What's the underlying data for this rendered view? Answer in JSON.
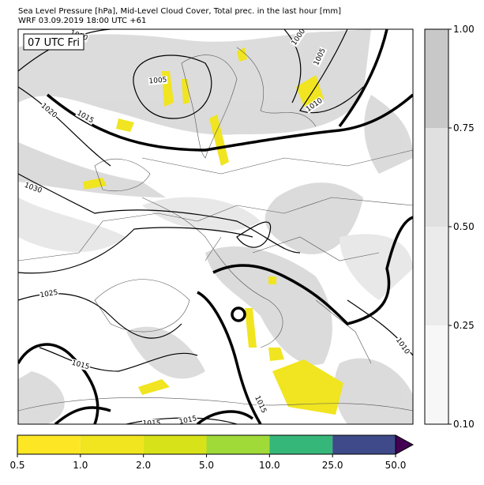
{
  "header": {
    "title": "Sea Level Pressure [hPa], Mid-Level Cloud Cover, Total prec. in the last hour [mm]",
    "subtitle": "WRF 03.09.2019 18:00 UTC +61"
  },
  "map": {
    "time_label": "07 UTC Fri",
    "isobar_labels": [
      "1010",
      "1000",
      "1005",
      "1005",
      "1015",
      "1020",
      "1010",
      "1030",
      "1025",
      "1015",
      "1010",
      "1015",
      "1015",
      "1015"
    ]
  },
  "cloud_colorbar": {
    "ticks": [
      "0.10",
      "0.25",
      "0.50",
      "0.75",
      "1.00"
    ],
    "colors": [
      "#f7f7f7",
      "#ebebeb",
      "#e0e0e0",
      "#c8c8c8"
    ]
  },
  "precip_colorbar": {
    "ticks": [
      "0.5",
      "1.0",
      "2.0",
      "5.0",
      "10.0",
      "25.0",
      "50.0"
    ],
    "colors": [
      "#fde725",
      "#f0e51e",
      "#d8e219",
      "#a0da39",
      "#35b779",
      "#3e4a89"
    ],
    "extend_color": "#440154"
  }
}
